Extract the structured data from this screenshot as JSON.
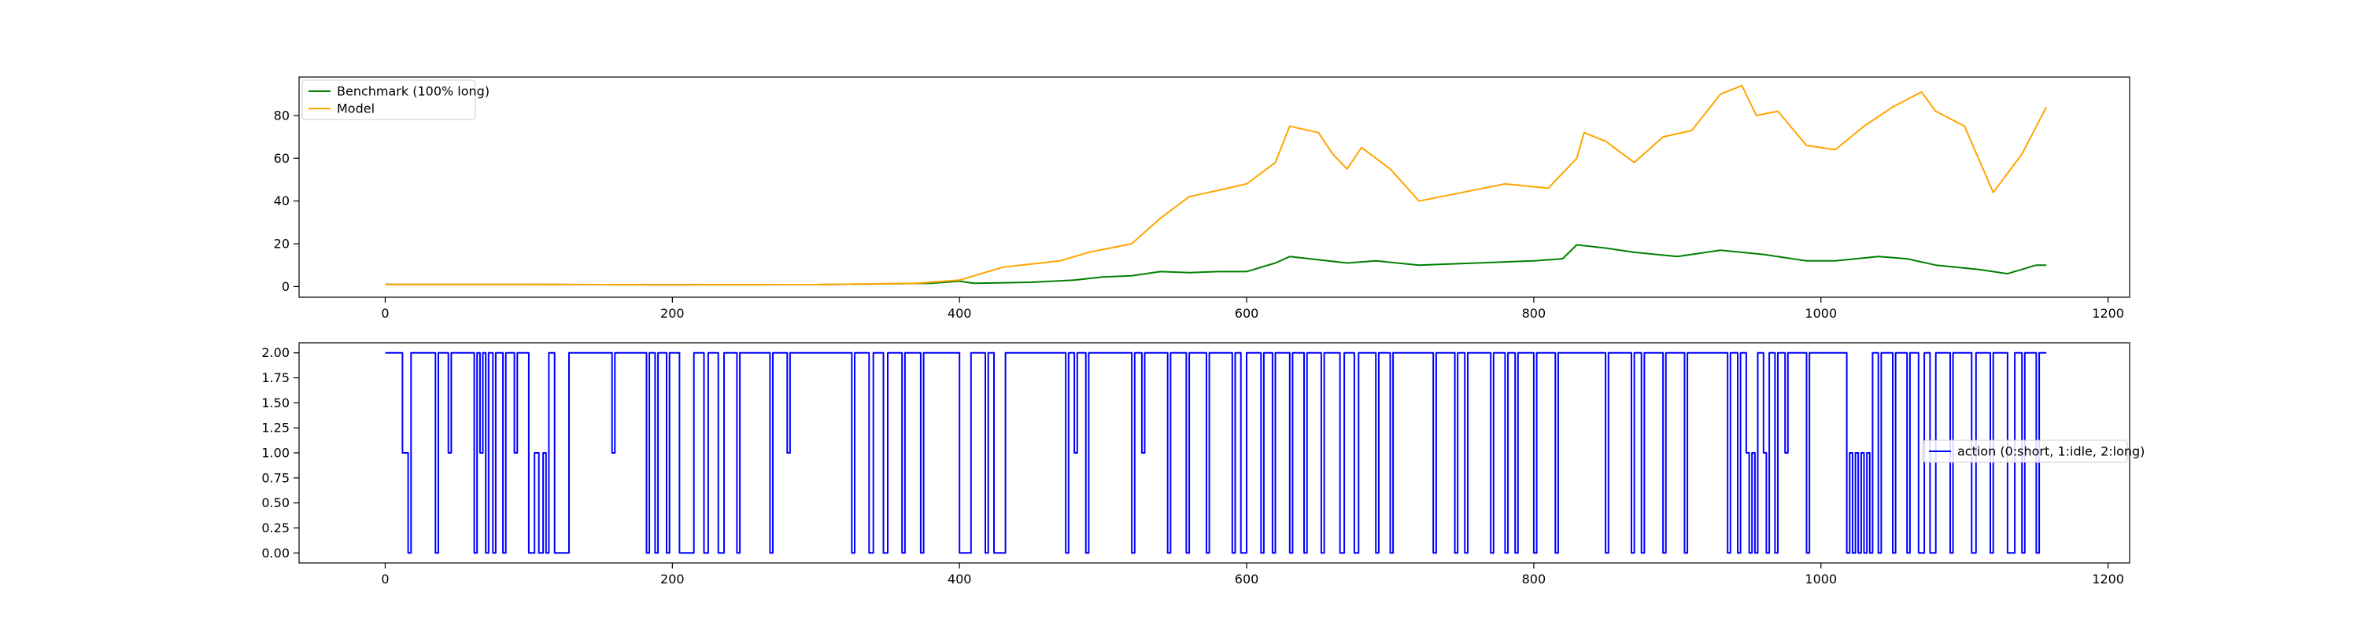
{
  "chart_data": [
    {
      "type": "line",
      "title": "",
      "xlabel": "",
      "ylabel": "",
      "xlim": [
        -60,
        1215
      ],
      "ylim": [
        -5,
        98
      ],
      "x_ticks": [
        "0",
        "200",
        "400",
        "600",
        "800",
        "1000",
        "1200"
      ],
      "y_ticks": [
        "0",
        "20",
        "40",
        "60",
        "80"
      ],
      "grid": false,
      "legend_position": "top-left",
      "series": [
        {
          "name": "Benchmark (100% long)",
          "color": "#008000",
          "points": [
            [
              0,
              1
            ],
            [
              100,
              1
            ],
            [
              200,
              0.8
            ],
            [
              300,
              0.9
            ],
            [
              380,
              1.5
            ],
            [
              400,
              2.5
            ],
            [
              410,
              1.5
            ],
            [
              450,
              2
            ],
            [
              480,
              3
            ],
            [
              500,
              4.5
            ],
            [
              520,
              5
            ],
            [
              540,
              7
            ],
            [
              560,
              6.5
            ],
            [
              580,
              7
            ],
            [
              600,
              7
            ],
            [
              620,
              11
            ],
            [
              630,
              14
            ],
            [
              650,
              12.5
            ],
            [
              670,
              11
            ],
            [
              690,
              12
            ],
            [
              720,
              10
            ],
            [
              760,
              11
            ],
            [
              800,
              12
            ],
            [
              820,
              13
            ],
            [
              830,
              19.5
            ],
            [
              850,
              18
            ],
            [
              870,
              16
            ],
            [
              900,
              14
            ],
            [
              930,
              17
            ],
            [
              960,
              15
            ],
            [
              990,
              12
            ],
            [
              1010,
              12
            ],
            [
              1040,
              14
            ],
            [
              1060,
              13
            ],
            [
              1080,
              10
            ],
            [
              1110,
              8
            ],
            [
              1130,
              6
            ],
            [
              1150,
              10
            ],
            [
              1157,
              10
            ]
          ]
        },
        {
          "name": "Model",
          "color": "#ffa500",
          "points": [
            [
              0,
              1
            ],
            [
              100,
              1
            ],
            [
              200,
              0.8
            ],
            [
              300,
              0.9
            ],
            [
              370,
              1.5
            ],
            [
              400,
              3
            ],
            [
              430,
              9
            ],
            [
              470,
              12
            ],
            [
              490,
              16
            ],
            [
              520,
              20
            ],
            [
              540,
              32
            ],
            [
              560,
              42
            ],
            [
              580,
              45
            ],
            [
              600,
              48
            ],
            [
              620,
              58
            ],
            [
              630,
              75
            ],
            [
              650,
              72
            ],
            [
              660,
              62
            ],
            [
              670,
              55
            ],
            [
              680,
              65
            ],
            [
              700,
              55
            ],
            [
              720,
              40
            ],
            [
              750,
              44
            ],
            [
              780,
              48
            ],
            [
              810,
              46
            ],
            [
              830,
              60
            ],
            [
              835,
              72
            ],
            [
              850,
              68
            ],
            [
              870,
              58
            ],
            [
              890,
              70
            ],
            [
              910,
              73
            ],
            [
              930,
              90
            ],
            [
              945,
              94
            ],
            [
              955,
              80
            ],
            [
              970,
              82
            ],
            [
              990,
              66
            ],
            [
              1010,
              64
            ],
            [
              1030,
              75
            ],
            [
              1050,
              84
            ],
            [
              1070,
              91
            ],
            [
              1080,
              82
            ],
            [
              1100,
              75
            ],
            [
              1120,
              44
            ],
            [
              1140,
              62
            ],
            [
              1157,
              84
            ]
          ]
        }
      ]
    },
    {
      "type": "line",
      "title": "",
      "xlabel": "",
      "ylabel": "",
      "xlim": [
        -60,
        1215
      ],
      "ylim": [
        -0.1,
        2.1
      ],
      "x_ticks": [
        "0",
        "200",
        "400",
        "600",
        "800",
        "1000",
        "1200"
      ],
      "y_ticks": [
        "0.00",
        "0.25",
        "0.50",
        "0.75",
        "1.00",
        "1.25",
        "1.50",
        "1.75",
        "2.00"
      ],
      "grid": false,
      "legend_position": "center-right",
      "series": [
        {
          "name": "action (0:short, 1:idle, 2:long)",
          "color": "#0000ff",
          "steps": [
            [
              0,
              2
            ],
            [
              12,
              1
            ],
            [
              16,
              0
            ],
            [
              18,
              2
            ],
            [
              35,
              0
            ],
            [
              37,
              2
            ],
            [
              44,
              1
            ],
            [
              46,
              2
            ],
            [
              62,
              0
            ],
            [
              64,
              2
            ],
            [
              66,
              1
            ],
            [
              68,
              2
            ],
            [
              70,
              0
            ],
            [
              72,
              2
            ],
            [
              75,
              0
            ],
            [
              77,
              2
            ],
            [
              82,
              0
            ],
            [
              84,
              2
            ],
            [
              90,
              1
            ],
            [
              92,
              2
            ],
            [
              100,
              0
            ],
            [
              104,
              1
            ],
            [
              107,
              0
            ],
            [
              110,
              1
            ],
            [
              112,
              0
            ],
            [
              114,
              2
            ],
            [
              118,
              0
            ],
            [
              128,
              2
            ],
            [
              158,
              1
            ],
            [
              160,
              2
            ],
            [
              182,
              0
            ],
            [
              184,
              2
            ],
            [
              188,
              0
            ],
            [
              190,
              2
            ],
            [
              196,
              0
            ],
            [
              198,
              2
            ],
            [
              205,
              0
            ],
            [
              215,
              2
            ],
            [
              222,
              0
            ],
            [
              225,
              2
            ],
            [
              232,
              0
            ],
            [
              236,
              2
            ],
            [
              245,
              0
            ],
            [
              247,
              2
            ],
            [
              268,
              0
            ],
            [
              270,
              2
            ],
            [
              280,
              1
            ],
            [
              282,
              2
            ],
            [
              325,
              0
            ],
            [
              327,
              2
            ],
            [
              337,
              0
            ],
            [
              340,
              2
            ],
            [
              347,
              0
            ],
            [
              350,
              2
            ],
            [
              360,
              0
            ],
            [
              362,
              2
            ],
            [
              373,
              0
            ],
            [
              375,
              2
            ],
            [
              400,
              0
            ],
            [
              408,
              2
            ],
            [
              418,
              0
            ],
            [
              420,
              2
            ],
            [
              424,
              0
            ],
            [
              432,
              2
            ],
            [
              474,
              0
            ],
            [
              476,
              2
            ],
            [
              480,
              1
            ],
            [
              482,
              2
            ],
            [
              488,
              0
            ],
            [
              490,
              2
            ],
            [
              520,
              0
            ],
            [
              522,
              2
            ],
            [
              527,
              1
            ],
            [
              529,
              2
            ],
            [
              545,
              0
            ],
            [
              547,
              2
            ],
            [
              558,
              0
            ],
            [
              560,
              2
            ],
            [
              572,
              0
            ],
            [
              574,
              2
            ],
            [
              590,
              0
            ],
            [
              592,
              2
            ],
            [
              596,
              0
            ],
            [
              600,
              2
            ],
            [
              610,
              0
            ],
            [
              612,
              2
            ],
            [
              618,
              0
            ],
            [
              620,
              2
            ],
            [
              630,
              0
            ],
            [
              632,
              2
            ],
            [
              640,
              0
            ],
            [
              642,
              2
            ],
            [
              652,
              0
            ],
            [
              654,
              2
            ],
            [
              665,
              0
            ],
            [
              668,
              2
            ],
            [
              675,
              0
            ],
            [
              678,
              2
            ],
            [
              690,
              0
            ],
            [
              692,
              2
            ],
            [
              700,
              0
            ],
            [
              702,
              2
            ],
            [
              730,
              0
            ],
            [
              732,
              2
            ],
            [
              745,
              0
            ],
            [
              747,
              2
            ],
            [
              752,
              0
            ],
            [
              754,
              2
            ],
            [
              770,
              0
            ],
            [
              772,
              2
            ],
            [
              780,
              0
            ],
            [
              782,
              2
            ],
            [
              787,
              0
            ],
            [
              789,
              2
            ],
            [
              800,
              0
            ],
            [
              802,
              2
            ],
            [
              815,
              0
            ],
            [
              817,
              2
            ],
            [
              850,
              0
            ],
            [
              852,
              2
            ],
            [
              868,
              0
            ],
            [
              870,
              2
            ],
            [
              875,
              0
            ],
            [
              877,
              2
            ],
            [
              890,
              0
            ],
            [
              892,
              2
            ],
            [
              905,
              0
            ],
            [
              907,
              2
            ],
            [
              935,
              0
            ],
            [
              937,
              2
            ],
            [
              942,
              0
            ],
            [
              944,
              2
            ],
            [
              948,
              1
            ],
            [
              950,
              0
            ],
            [
              952,
              1
            ],
            [
              954,
              0
            ],
            [
              956,
              2
            ],
            [
              960,
              1
            ],
            [
              962,
              0
            ],
            [
              964,
              2
            ],
            [
              968,
              0
            ],
            [
              970,
              2
            ],
            [
              975,
              1
            ],
            [
              977,
              2
            ],
            [
              990,
              0
            ],
            [
              992,
              2
            ],
            [
              1018,
              0
            ],
            [
              1020,
              1
            ],
            [
              1022,
              0
            ],
            [
              1024,
              1
            ],
            [
              1026,
              0
            ],
            [
              1028,
              1
            ],
            [
              1030,
              0
            ],
            [
              1032,
              1
            ],
            [
              1034,
              0
            ],
            [
              1036,
              2
            ],
            [
              1040,
              0
            ],
            [
              1042,
              2
            ],
            [
              1050,
              0
            ],
            [
              1052,
              2
            ],
            [
              1060,
              0
            ],
            [
              1062,
              2
            ],
            [
              1068,
              0
            ],
            [
              1072,
              2
            ],
            [
              1076,
              0
            ],
            [
              1080,
              2
            ],
            [
              1090,
              0
            ],
            [
              1092,
              2
            ],
            [
              1105,
              0
            ],
            [
              1108,
              2
            ],
            [
              1118,
              0
            ],
            [
              1120,
              2
            ],
            [
              1130,
              0
            ],
            [
              1135,
              2
            ],
            [
              1140,
              0
            ],
            [
              1142,
              2
            ],
            [
              1150,
              0
            ],
            [
              1152,
              2
            ],
            [
              1157,
              2
            ]
          ]
        }
      ]
    }
  ]
}
